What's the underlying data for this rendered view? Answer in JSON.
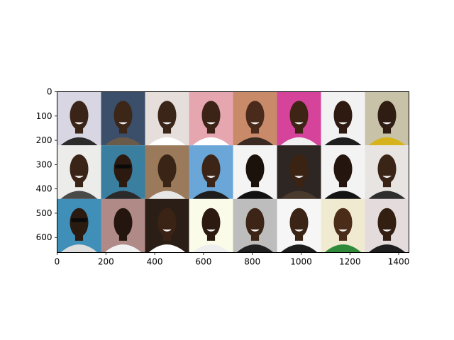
{
  "chart_data": {
    "type": "image-grid",
    "grid": {
      "rows": 3,
      "cols": 8
    },
    "xlim": [
      0,
      1442
    ],
    "ylim": [
      662,
      0
    ],
    "x_ticks": [
      0,
      200,
      400,
      600,
      800,
      1000,
      1200,
      1400
    ],
    "y_ticks": [
      0,
      100,
      200,
      300,
      400,
      500,
      600
    ],
    "x_tick_labels": [
      "0",
      "200",
      "400",
      "600",
      "800",
      "1000",
      "1200",
      "1400"
    ],
    "y_tick_labels": [
      "0",
      "100",
      "200",
      "300",
      "400",
      "500",
      "600"
    ],
    "tiles": [
      {
        "bg": "#d8d6e2",
        "shirt": "#2b2b2b",
        "skin": "#3a2418",
        "glasses": false,
        "mouth": true
      },
      {
        "bg": "#3b4e6a",
        "shirt": "#6a5a4a",
        "skin": "#3c2617",
        "glasses": false,
        "mouth": true
      },
      {
        "bg": "#e6dedb",
        "shirt": "#ffffff",
        "skin": "#3a2518",
        "glasses": false,
        "mouth": true
      },
      {
        "bg": "#e6a6b0",
        "shirt": "#ffffff",
        "skin": "#3b2416",
        "glasses": false,
        "mouth": true
      },
      {
        "bg": "#c98a6a",
        "shirt": "#3a2a22",
        "skin": "#4a2a1a",
        "glasses": false,
        "mouth": true
      },
      {
        "bg": "#d6439b",
        "shirt": "#f0f0f0",
        "skin": "#3d2415",
        "glasses": false,
        "mouth": true
      },
      {
        "bg": "#f2f2f2",
        "shirt": "#1e1e1e",
        "skin": "#2e1a10",
        "glasses": false,
        "mouth": true
      },
      {
        "bg": "#c8c2a8",
        "shirt": "#d6b21c",
        "skin": "#2f1c12",
        "glasses": false,
        "mouth": true
      },
      {
        "bg": "#ececea",
        "shirt": "#4a4a4a",
        "skin": "#3a2417",
        "glasses": false,
        "mouth": true
      },
      {
        "bg": "#3a7ea0",
        "shirt": "#2a2a2a",
        "skin": "#2c1a10",
        "glasses": true,
        "mouth": false
      },
      {
        "bg": "#9a7a5a",
        "shirt": "#e8e8e8",
        "skin": "#3a2416",
        "glasses": false,
        "mouth": false
      },
      {
        "bg": "#6aa6d8",
        "shirt": "#1e1e1e",
        "skin": "#3c2516",
        "glasses": false,
        "mouth": true
      },
      {
        "bg": "#f4f4f4",
        "shirt": "#111111",
        "skin": "#1c120c",
        "glasses": false,
        "mouth": false
      },
      {
        "bg": "#2e2622",
        "shirt": "#4a3a2e",
        "skin": "#3b2314",
        "glasses": false,
        "mouth": true
      },
      {
        "bg": "#f3f3f3",
        "shirt": "#141414",
        "skin": "#24160e",
        "glasses": false,
        "mouth": false
      },
      {
        "bg": "#e8e4e2",
        "shirt": "#2e2e2e",
        "skin": "#3a2416",
        "glasses": false,
        "mouth": true
      },
      {
        "bg": "#3f8fb8",
        "shirt": "#dedede",
        "skin": "#2a1a10",
        "glasses": true,
        "mouth": false
      },
      {
        "bg": "#b08a86",
        "shirt": "#f2f2f2",
        "skin": "#24160e",
        "glasses": false,
        "mouth": false
      },
      {
        "bg": "#2a1e16",
        "shirt": "#ffffff",
        "skin": "#3a2314",
        "glasses": false,
        "mouth": true
      },
      {
        "bg": "#fbfbea",
        "shirt": "#eeeeee",
        "skin": "#2c1a10",
        "glasses": false,
        "mouth": true
      },
      {
        "bg": "#bdbdbd",
        "shirt": "#202020",
        "skin": "#3c2516",
        "glasses": false,
        "mouth": true
      },
      {
        "bg": "#f6f6f6",
        "shirt": "#1c1c1c",
        "skin": "#3a2416",
        "glasses": false,
        "mouth": true
      },
      {
        "bg": "#f0ead0",
        "shirt": "#2f8a3a",
        "skin": "#4a2c18",
        "glasses": false,
        "mouth": true
      },
      {
        "bg": "#e4dcdc",
        "shirt": "#1e1e1e",
        "skin": "#331e12",
        "glasses": false,
        "mouth": true
      }
    ]
  }
}
